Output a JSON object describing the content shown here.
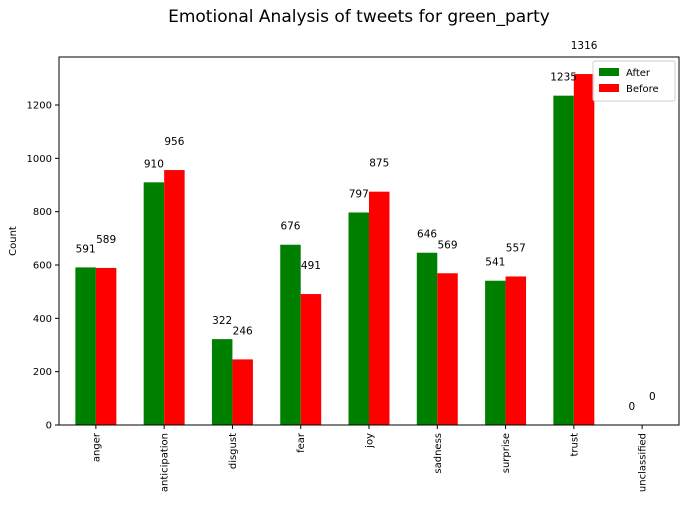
{
  "chart_data": {
    "type": "bar",
    "title": "Emotional Analysis of tweets for green_party",
    "xlabel": "",
    "ylabel": "Count",
    "categories": [
      "anger",
      "anticipation",
      "disgust",
      "fear",
      "joy",
      "sadness",
      "surprise",
      "trust",
      "unclassified"
    ],
    "series": [
      {
        "name": "After",
        "color": "#008000",
        "values": [
          591,
          910,
          322,
          676,
          797,
          646,
          541,
          1235,
          0
        ]
      },
      {
        "name": "Before",
        "color": "#ff0000",
        "values": [
          589,
          956,
          246,
          491,
          875,
          569,
          557,
          1316,
          0
        ]
      }
    ],
    "ylim": [
      0,
      1380
    ],
    "yticks": [
      0,
      200,
      400,
      600,
      800,
      1000,
      1200
    ],
    "grid": false,
    "legend": "top-right",
    "data_labels": true
  }
}
